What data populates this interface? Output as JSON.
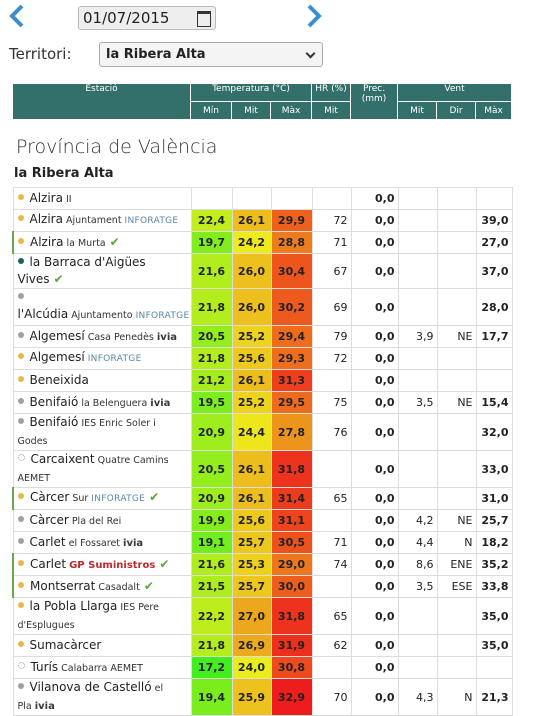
{
  "header": {
    "date": "01/07/2015",
    "territory_label": "Territori:",
    "territory": "la Ribera Alta"
  },
  "table": {
    "columns": {
      "station": "Estació",
      "temperature": "Temperatura (°C)",
      "humidity": "HR (%)",
      "precipitation": "Prec. (mm)",
      "wind": "Vent"
    },
    "subcolumns": [
      "Mín",
      "Mit",
      "Màx",
      "Mit",
      "Mit",
      "Dir",
      "Màx"
    ],
    "section": "Província de València",
    "group": "la Ribera Alta",
    "rows": [
      {
        "name": "Alzira",
        "detail": "II",
        "dot": "#e8b84a",
        "values": [
          null,
          null,
          null,
          null,
          "0,0",
          null,
          null,
          null
        ]
      },
      {
        "name": "Alzira",
        "detail": "Ajuntament",
        "tag": "INFORATGE",
        "tag_style": "inforatge",
        "dot": "#e8b84a",
        "values": [
          "22,4",
          "26,1",
          "29,9",
          "72",
          "0,0",
          null,
          null,
          "39,0"
        ]
      },
      {
        "name": "Alzira",
        "detail": "la Murta",
        "check": true,
        "highlight": true,
        "dot": "#e8b84a",
        "values": [
          "19,7",
          "24,2",
          "28,8",
          "71",
          "0,0",
          null,
          null,
          "27,0"
        ]
      },
      {
        "name": "la Barraca d'Aigües Vives",
        "check": true,
        "dot": "#1e5f5a",
        "values": [
          "21,6",
          "26,0",
          "30,4",
          "67",
          "0,0",
          null,
          null,
          "37,0"
        ]
      },
      {
        "name": "l'Alcúdia",
        "detail": "Ajuntamento",
        "tag": "INFORATGE",
        "tag_style": "inforatge",
        "dot": "#a0a0a0",
        "values": [
          "21,8",
          "26,0",
          "30,2",
          "69",
          "0,0",
          null,
          null,
          "28,0"
        ]
      },
      {
        "name": "Algemesí",
        "detail": "Casa Penedès",
        "tag": "ivia",
        "tag_style": "ivia",
        "dot": "#a0a0a0",
        "values": [
          "20,5",
          "25,2",
          "29,4",
          "79",
          "0,0",
          "3,9",
          "NE",
          "17,7"
        ]
      },
      {
        "name": "Algemesí",
        "tag": "INFORATGE",
        "tag_style": "inforatge",
        "dot": "#e8b84a",
        "values": [
          "21,8",
          "25,6",
          "29,3",
          "72",
          "0,0",
          null,
          null,
          null
        ]
      },
      {
        "name": "Beneixida",
        "dot": "#e8b84a",
        "values": [
          "21,2",
          "26,1",
          "31,3",
          null,
          "0,0",
          null,
          null,
          null
        ]
      },
      {
        "name": "Benifaió",
        "detail": "la Belenguera",
        "tag": "ivia",
        "tag_style": "ivia",
        "dot": "#a0a0a0",
        "values": [
          "19,5",
          "25,2",
          "29,5",
          "75",
          "0,0",
          "3,5",
          "NE",
          "15,4"
        ]
      },
      {
        "name": "Benifaió",
        "detail": "IES Enric Soler i Godes",
        "dot": "#a0a0a0",
        "values": [
          "20,9",
          "24,4",
          "27,8",
          "76",
          "0,0",
          null,
          null,
          "32,0"
        ]
      },
      {
        "name": "Carcaixent",
        "detail": "Quatre Camins AEMET",
        "dot": "#c8c8c8",
        "dot_style": "dotted",
        "values": [
          "20,5",
          "26,1",
          "31,8",
          null,
          "0,0",
          null,
          null,
          "33,0"
        ]
      },
      {
        "name": "Càrcer",
        "detail": "Sur",
        "tag": "INFORATGE",
        "tag_style": "inforatge",
        "check": true,
        "highlight": true,
        "dot": "#e8b84a",
        "values": [
          "20,9",
          "26,1",
          "31,4",
          "65",
          "0,0",
          null,
          null,
          "31,0"
        ]
      },
      {
        "name": "Càrcer",
        "detail": "Pla del Rei",
        "dot": "#a0a0a0",
        "values": [
          "19,9",
          "25,6",
          "31,1",
          null,
          "0,0",
          "4,2",
          "NE",
          "25,7"
        ]
      },
      {
        "name": "Carlet",
        "detail": "el Fossaret",
        "tag": "ivia",
        "tag_style": "ivia",
        "dot": "#a0a0a0",
        "values": [
          "19,1",
          "25,7",
          "30,5",
          "71",
          "0,0",
          "4,4",
          "N",
          "18,2"
        ]
      },
      {
        "name": "Carlet",
        "tag": "GP Suministros",
        "tag_style": "gp",
        "check": true,
        "highlight": true,
        "dot": "#e8b84a",
        "values": [
          "21,6",
          "25,3",
          "29,0",
          "74",
          "0,0",
          "8,6",
          "ENE",
          "35,2"
        ]
      },
      {
        "name": "Montserrat",
        "detail": "Casadalt",
        "check": true,
        "highlight": true,
        "dot": "#e8b84a",
        "values": [
          "21,5",
          "25,7",
          "30,0",
          null,
          "0,0",
          "3,5",
          "ESE",
          "33,8"
        ]
      },
      {
        "name": "la Pobla Llarga",
        "detail": "IES Pere d'Esplugues",
        "dot": "#e8b84a",
        "values": [
          "22,2",
          "27,0",
          "31,8",
          "65",
          "0,0",
          null,
          null,
          "35,0"
        ]
      },
      {
        "name": "Sumacàrcer",
        "dot": "#e8b84a",
        "values": [
          "21,8",
          "26,9",
          "31,9",
          "62",
          "0,0",
          null,
          null,
          "35,0"
        ]
      },
      {
        "name": "Turís",
        "detail": "Calabarra AEMET",
        "dot": "#c8c8c8",
        "dot_style": "dotted",
        "values": [
          "17,2",
          "24,0",
          "30,8",
          null,
          "0,0",
          null,
          null,
          null
        ]
      },
      {
        "name": "Vilanova de Castelló",
        "detail": "el Pla",
        "tag": "ivia",
        "tag_style": "ivia",
        "dot": "#a0a0a0",
        "values": [
          "19,4",
          "25,9",
          "32,9",
          "70",
          "0,0",
          "4,3",
          "N",
          "21,3"
        ]
      }
    ]
  }
}
